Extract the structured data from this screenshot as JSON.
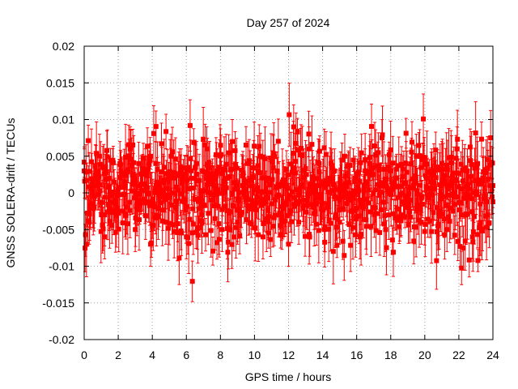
{
  "chart_data": {
    "type": "scatter",
    "title": "Day 257 of 2024",
    "xlabel": "GPS time / hours",
    "ylabel": "GNSS SOLERA-drift / TECUs",
    "xlim": [
      0,
      24
    ],
    "ylim": [
      -0.02,
      0.02
    ],
    "xticks": [
      0,
      2,
      4,
      6,
      8,
      10,
      12,
      14,
      16,
      18,
      20,
      22,
      24
    ],
    "xtick_labels": [
      "0",
      "2",
      "4",
      "6",
      "8",
      "10",
      "12",
      "14",
      "16",
      "18",
      "20",
      "22",
      "24"
    ],
    "yticks": [
      -0.02,
      -0.015,
      -0.01,
      -0.005,
      0,
      0.005,
      0.01,
      0.015,
      0.02
    ],
    "ytick_labels": [
      "-0.02",
      "-0.015",
      "-0.01",
      "-0.005",
      "0",
      "0.005",
      "0.01",
      "0.015",
      "0.02"
    ],
    "grid": true,
    "marker": "filled-square",
    "error_bars": true,
    "color": "#ff0000",
    "series": [
      {
        "x": [
          0.0,
          0.3,
          0.6,
          0.9,
          1.2,
          1.5,
          1.8,
          2.1,
          2.4,
          2.7,
          3.0,
          3.3,
          3.6,
          3.9,
          4.2,
          4.5,
          4.8,
          5.1,
          5.4,
          5.7,
          6.0,
          6.3,
          6.6,
          6.9,
          7.2,
          7.5,
          7.8,
          8.1,
          8.4,
          8.7,
          9.0,
          9.3,
          9.6,
          9.9,
          10.2,
          10.5,
          10.8,
          11.1,
          11.4,
          11.7,
          12.0,
          12.3,
          12.6,
          12.9,
          13.2,
          13.5,
          13.8,
          14.1,
          14.4,
          14.7,
          15.0,
          15.3,
          15.6,
          15.9,
          16.2,
          16.5,
          16.8,
          17.1,
          17.4,
          17.7,
          18.0,
          18.3,
          18.6,
          18.9,
          19.2,
          19.5,
          19.8,
          20.1,
          20.4,
          20.7,
          21.0,
          21.3,
          21.6,
          21.9,
          22.2,
          22.5,
          22.8,
          23.1,
          23.4,
          23.7,
          24.0
        ],
        "y": [
          0.003,
          -0.004,
          0.001,
          0.005,
          -0.006,
          0.002,
          -0.001,
          0.004,
          -0.003,
          0.006,
          -0.005,
          0.001,
          0.003,
          -0.007,
          0.004,
          0.0,
          -0.004,
          0.005,
          -0.002,
          0.003,
          -0.006,
          0.002,
          0.004,
          -0.003,
          0.006,
          -0.001,
          0.003,
          -0.005,
          0.002,
          0.007,
          -0.004,
          0.001,
          0.004,
          -0.002,
          0.003,
          -0.006,
          0.002,
          0.005,
          -0.003,
          0.001,
          -0.007,
          0.009,
          -0.004,
          0.003,
          0.006,
          -0.002,
          0.004,
          -0.005,
          0.002,
          0.003,
          -0.004,
          0.005,
          -0.001,
          0.002,
          -0.006,
          0.003,
          0.004,
          -0.002,
          0.001,
          -0.005,
          0.003,
          0.002,
          -0.003,
          0.004,
          -0.001,
          0.005,
          -0.004,
          0.002,
          0.003,
          -0.002,
          0.004,
          -0.005,
          0.001,
          0.006,
          -0.003,
          0.003,
          -0.006,
          0.004,
          0.002,
          -0.003,
          0.001
        ]
      }
    ]
  }
}
